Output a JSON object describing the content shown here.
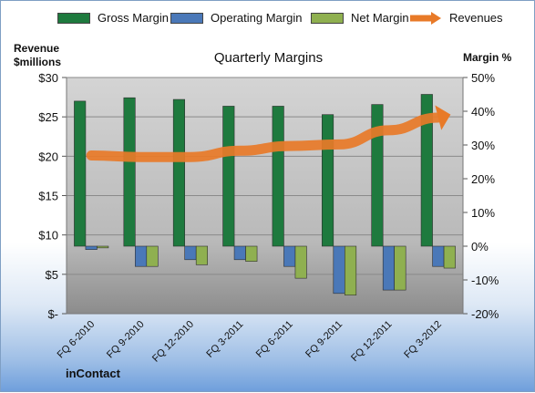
{
  "chart_data": {
    "type": "bar",
    "title": "Quarterly Margins",
    "ylabel_left": [
      "Revenue",
      "$millions"
    ],
    "ylabel_right": "Margin %",
    "footer": "inContact",
    "categories": [
      "FQ 6-2010",
      "FQ 9-2010",
      "FQ 12-2010",
      "FQ 3-2011",
      "FQ 6-2011",
      "FQ 9-2011",
      "FQ 12-2011",
      "FQ 3-2012"
    ],
    "ylim_left": [
      0,
      30
    ],
    "yticks_left": [
      "$30",
      "$25",
      "$20",
      "$15",
      "$10",
      "$5",
      "$-"
    ],
    "ylim_right": [
      -20,
      50
    ],
    "yticks_right": [
      "50%",
      "40%",
      "30%",
      "20%",
      "10%",
      "0%",
      "-10%",
      "-20%"
    ],
    "series": [
      {
        "name": "Gross Margin",
        "axis": "right",
        "type": "bar",
        "color": "#1e7a3e",
        "values": [
          43,
          44,
          43.5,
          41.5,
          41.5,
          39,
          42,
          45
        ]
      },
      {
        "name": "Operating Margin",
        "axis": "right",
        "type": "bar",
        "color": "#4a78b8",
        "values": [
          -1,
          -6,
          -4,
          -4,
          -6,
          -14,
          -13,
          -6
        ]
      },
      {
        "name": "Net Margin",
        "axis": "right",
        "type": "bar",
        "color": "#8fb050",
        "values": [
          -0.5,
          -6,
          -5.5,
          -4.5,
          -9.5,
          -14.5,
          -13,
          -6.5
        ]
      },
      {
        "name": "Revenues",
        "axis": "left",
        "type": "line",
        "color": "#e87a28",
        "values": [
          20.1,
          19.9,
          19.9,
          20.7,
          21.3,
          21.5,
          23.3,
          24.9
        ]
      }
    ],
    "grid": true,
    "legend": "top"
  }
}
